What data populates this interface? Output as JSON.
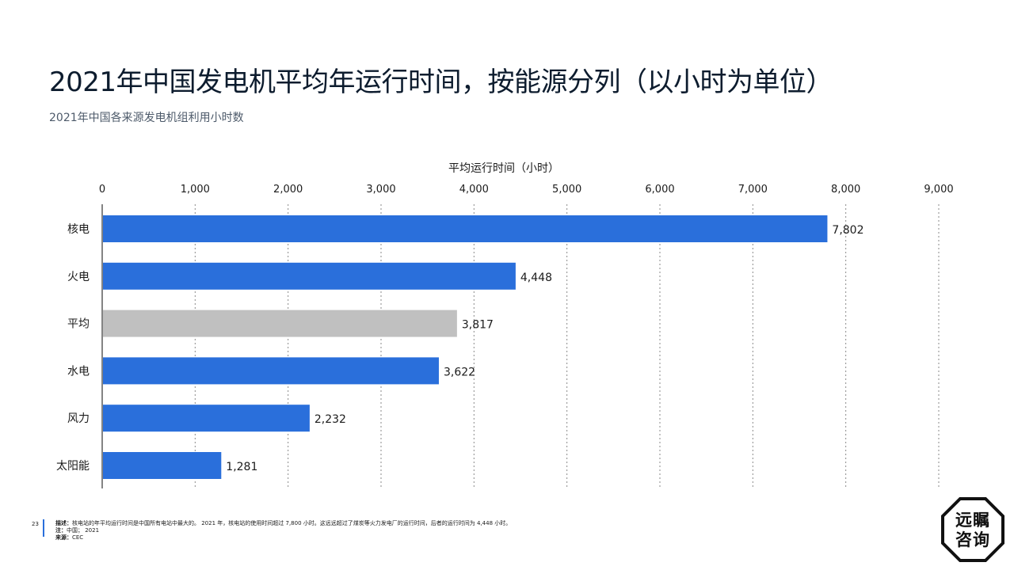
{
  "header": {
    "title": "2021年中国发电机平均年运行时间，按能源分列（以小时为单位）",
    "subtitle": "2021年中国各来源发电机组利用小时数"
  },
  "chart_data": {
    "type": "bar",
    "orientation": "horizontal",
    "xlabel": "平均运行时间（小时）",
    "xlim": [
      0,
      9000
    ],
    "x_ticks": [
      "0",
      "1,000",
      "2,000",
      "3,000",
      "4,000",
      "5,000",
      "6,000",
      "7,000",
      "8,000",
      "9,000"
    ],
    "grid": true,
    "categories": [
      "核电",
      "火电",
      "平均",
      "水电",
      "风力",
      "太阳能"
    ],
    "values": [
      7802,
      4448,
      3817,
      3622,
      2232,
      1281
    ],
    "value_labels": [
      "7,802",
      "4,448",
      "3,817",
      "3,622",
      "2,232",
      "1,281"
    ],
    "bar_colors": [
      "#2a6fdb",
      "#2a6fdb",
      "#c0c0c0",
      "#2a6fdb",
      "#2a6fdb",
      "#2a6fdb"
    ]
  },
  "footer": {
    "page_number": "23",
    "description_label": "描述：",
    "description": "核电站的年平均运行时间是中国所有电站中最大的。 2021 年，核电站的使用时间超过 7,800 小时。这远远超过了煤炭等火力发电厂的运行时间，后者的运行时间为 4,448 小时。",
    "note_label": "注：",
    "note": "中国； 2021",
    "source_label": "来源：",
    "source": "CEC"
  },
  "logo": {
    "line1": "远瞩",
    "line2": "咨询"
  }
}
